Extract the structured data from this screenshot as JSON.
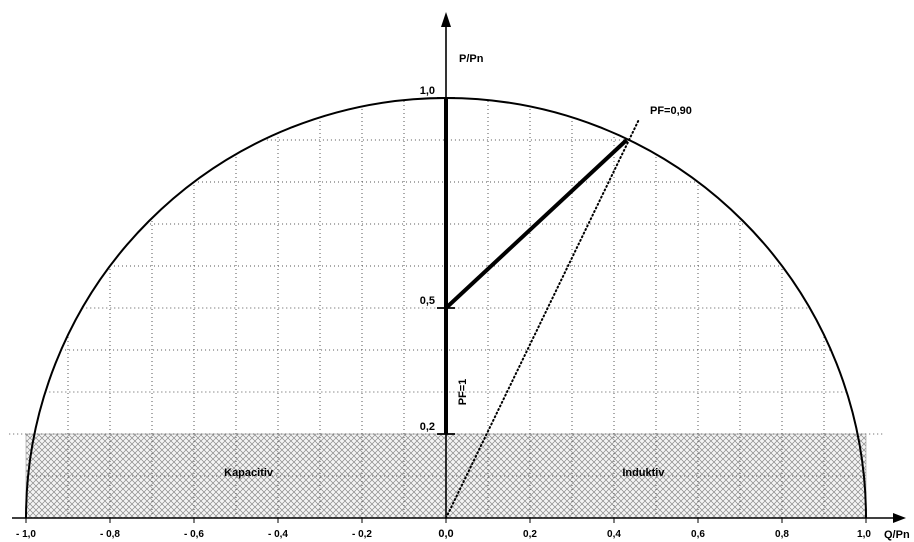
{
  "chart_data": {
    "type": "line",
    "xlabel": "Q/Pn",
    "ylabel": "P/Pn",
    "xlim": [
      -1.0,
      1.0
    ],
    "ylim": [
      0,
      1.0
    ],
    "grid": true,
    "x_tick_labels": [
      {
        "value": -1.0,
        "label": "- 1,0"
      },
      {
        "value": -0.8,
        "label": "- 0,8"
      },
      {
        "value": -0.6,
        "label": "- 0,6"
      },
      {
        "value": -0.4,
        "label": "- 0,4"
      },
      {
        "value": -0.2,
        "label": "- 0,2"
      },
      {
        "value": 0.0,
        "label": "0,0"
      },
      {
        "value": 0.2,
        "label": "0,2"
      },
      {
        "value": 0.4,
        "label": "0,4"
      },
      {
        "value": 0.6,
        "label": "0,6"
      },
      {
        "value": 0.8,
        "label": "0,8"
      },
      {
        "value": 1.0,
        "label": "1,0"
      }
    ],
    "y_tick_labels": [
      {
        "value": 1.0,
        "label": "1,0"
      },
      {
        "value": 0.5,
        "label": "0,5"
      },
      {
        "value": 0.2,
        "label": "0,2"
      }
    ],
    "circle": {
      "radius": 1.0
    },
    "shaded_band": {
      "y_from": 0,
      "y_to": 0.2,
      "pattern": "crosshatch"
    },
    "region_labels": [
      {
        "text": "Kapacitiv",
        "x": -0.47,
        "y": 0.1
      },
      {
        "text": "Induktiv",
        "x": 0.47,
        "y": 0.1
      }
    ],
    "series": [
      {
        "name": "PF=1",
        "style": "thick",
        "points": [
          [
            0,
            0.2
          ],
          [
            0,
            1.0
          ]
        ]
      },
      {
        "style": "thick",
        "points": [
          [
            0,
            0.5
          ],
          [
            0.43,
            0.9
          ]
        ]
      },
      {
        "name": "PF=0,90",
        "style": "dotted",
        "points": [
          [
            0,
            0
          ],
          [
            0.46,
            0.95
          ]
        ]
      }
    ],
    "colors": {
      "ink": "#000000",
      "grid": "#555555",
      "hatch": "#8a8a8a",
      "hatch_bg": "#f4f4f4"
    }
  }
}
